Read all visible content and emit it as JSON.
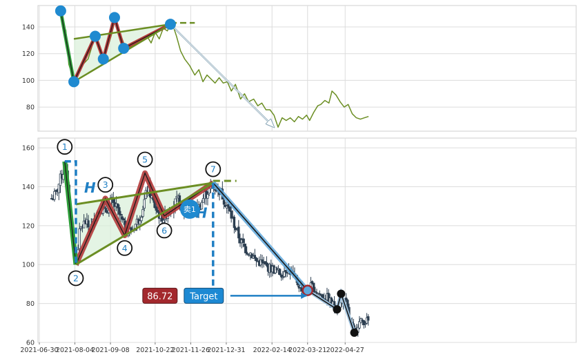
{
  "chart_data": [
    {
      "type": "line",
      "panel": "overview",
      "ylim": [
        62,
        156
      ],
      "yticks": [
        80,
        100,
        120,
        140
      ],
      "grid": true,
      "series": [
        {
          "color": "#6b8e23",
          "points": [
            [
              "2021-07-26",
              138
            ],
            [
              "2021-07-29",
              112
            ],
            [
              "2021-08-03",
              100
            ],
            [
              "2021-08-07",
              106
            ],
            [
              "2021-08-12",
              112
            ],
            [
              "2021-08-17",
              116
            ],
            [
              "2021-08-21",
              126
            ],
            [
              "2021-08-25",
              133
            ],
            [
              "2021-08-29",
              124
            ],
            [
              "2021-09-01",
              116
            ],
            [
              "2021-09-05",
              124
            ],
            [
              "2021-09-09",
              134
            ],
            [
              "2021-09-13",
              146
            ],
            [
              "2021-09-17",
              136
            ],
            [
              "2021-09-21",
              128
            ],
            [
              "2021-09-25",
              124
            ],
            [
              "2021-09-30",
              126
            ],
            [
              "2021-10-05",
              129
            ],
            [
              "2021-10-09",
              131
            ],
            [
              "2021-10-14",
              133
            ],
            [
              "2021-10-18",
              128
            ],
            [
              "2021-10-22",
              136
            ],
            [
              "2021-10-26",
              131
            ],
            [
              "2021-10-30",
              139
            ],
            [
              "2021-11-03",
              137
            ],
            [
              "2021-11-06",
              142
            ],
            [
              "2021-11-09",
              140
            ],
            [
              "2021-11-12",
              133
            ],
            [
              "2021-11-16",
              122
            ],
            [
              "2021-11-20",
              116
            ],
            [
              "2021-11-25",
              111
            ],
            [
              "2021-11-30",
              104
            ],
            [
              "2021-12-04",
              108
            ],
            [
              "2021-12-08",
              99
            ],
            [
              "2021-12-12",
              104
            ],
            [
              "2021-12-16",
              101
            ],
            [
              "2021-12-20",
              98
            ],
            [
              "2021-12-24",
              102
            ],
            [
              "2021-12-28",
              98
            ],
            [
              "2022-01-01",
              99
            ],
            [
              "2022-01-05",
              92
            ],
            [
              "2022-01-09",
              97
            ],
            [
              "2022-01-14",
              86
            ],
            [
              "2022-01-18",
              90
            ],
            [
              "2022-01-22",
              84
            ],
            [
              "2022-01-27",
              86
            ],
            [
              "2022-01-31",
              81
            ],
            [
              "2022-02-04",
              83
            ],
            [
              "2022-02-08",
              78
            ],
            [
              "2022-02-12",
              78
            ],
            [
              "2022-02-16",
              74
            ],
            [
              "2022-02-20",
              65
            ],
            [
              "2022-02-24",
              72
            ],
            [
              "2022-02-28",
              70
            ],
            [
              "2022-03-04",
              72
            ],
            [
              "2022-03-08",
              69
            ],
            [
              "2022-03-12",
              73
            ],
            [
              "2022-03-16",
              71
            ],
            [
              "2022-03-20",
              74
            ],
            [
              "2022-03-23",
              70
            ],
            [
              "2022-03-27",
              76
            ],
            [
              "2022-03-31",
              81
            ],
            [
              "2022-04-03",
              82
            ],
            [
              "2022-04-07",
              85
            ],
            [
              "2022-04-11",
              83
            ],
            [
              "2022-04-14",
              92
            ],
            [
              "2022-04-18",
              89
            ],
            [
              "2022-04-22",
              84
            ],
            [
              "2022-04-26",
              80
            ],
            [
              "2022-04-30",
              82
            ],
            [
              "2022-05-04",
              75
            ],
            [
              "2022-05-08",
              72
            ],
            [
              "2022-05-12",
              71
            ],
            [
              "2022-05-16",
              72
            ],
            [
              "2022-05-20",
              73
            ]
          ]
        }
      ],
      "pattern": {
        "leg_start": [
          "2021-07-21",
          152
        ],
        "leg_end": [
          "2021-08-03",
          99
        ],
        "zigzag": [
          [
            "2021-08-03",
            99
          ],
          [
            "2021-08-24",
            133
          ],
          [
            "2021-09-01",
            116
          ],
          [
            "2021-09-12",
            147
          ],
          [
            "2021-09-21",
            124
          ],
          [
            "2021-11-06",
            142
          ]
        ],
        "upper_line": [
          [
            "2021-08-03",
            131
          ],
          [
            "2021-11-06",
            142
          ]
        ],
        "lower_line": [
          [
            "2021-08-03",
            99
          ],
          [
            "2021-11-06",
            142
          ]
        ],
        "extension": [
          [
            "2021-11-06",
            143
          ],
          [
            "2021-11-30",
            143
          ]
        ],
        "target_arrow": [
          [
            "2021-11-06",
            142
          ],
          [
            "2022-02-16",
            65
          ]
        ]
      }
    },
    {
      "type": "candlestick",
      "panel": "detail",
      "ylim": [
        60,
        165
      ],
      "yticks": [
        60,
        80,
        100,
        120,
        140,
        160
      ],
      "xlim": [
        "2021-06-30",
        "2022-05-31"
      ],
      "xticks": [
        "2021-06-30",
        "2021-08-04",
        "2021-09-08",
        "2021-10-22",
        "2021-11-26",
        "2021-12-31",
        "2022-02-14",
        "2022-03-21",
        "2022-04-27"
      ],
      "grid": true,
      "price_path": [
        [
          "2021-07-12",
          134
        ],
        [
          "2021-07-16",
          136
        ],
        [
          "2021-07-22",
          146
        ],
        [
          "2021-07-26",
          150
        ],
        [
          "2021-07-30",
          126
        ],
        [
          "2021-08-03",
          108
        ],
        [
          "2021-08-05",
          100
        ],
        [
          "2021-08-09",
          118
        ],
        [
          "2021-08-14",
          122
        ],
        [
          "2021-08-19",
          118
        ],
        [
          "2021-08-24",
          125
        ],
        [
          "2021-08-29",
          129
        ],
        [
          "2021-09-03",
          127
        ],
        [
          "2021-09-08",
          132
        ],
        [
          "2021-09-13",
          130
        ],
        [
          "2021-09-18",
          124
        ],
        [
          "2021-09-23",
          118
        ],
        [
          "2021-09-28",
          117
        ],
        [
          "2021-10-03",
          121
        ],
        [
          "2021-10-08",
          126
        ],
        [
          "2021-10-11",
          132
        ],
        [
          "2021-10-15",
          140
        ],
        [
          "2021-10-20",
          132
        ],
        [
          "2021-10-25",
          126
        ],
        [
          "2021-10-30",
          124
        ],
        [
          "2021-11-04",
          128
        ],
        [
          "2021-11-09",
          131
        ],
        [
          "2021-11-14",
          133
        ],
        [
          "2021-11-19",
          126
        ],
        [
          "2021-11-24",
          127
        ],
        [
          "2021-11-30",
          128
        ],
        [
          "2021-12-05",
          130
        ],
        [
          "2021-12-10",
          136
        ],
        [
          "2021-12-15",
          139
        ],
        [
          "2021-12-20",
          140
        ],
        [
          "2021-12-25",
          138
        ],
        [
          "2021-12-30",
          132
        ],
        [
          "2022-01-04",
          126
        ],
        [
          "2022-01-09",
          119
        ],
        [
          "2022-01-14",
          112
        ],
        [
          "2022-01-19",
          108
        ],
        [
          "2022-01-24",
          106
        ],
        [
          "2022-01-29",
          102
        ],
        [
          "2022-02-03",
          101
        ],
        [
          "2022-02-08",
          99
        ],
        [
          "2022-02-13",
          98
        ],
        [
          "2022-02-18",
          97
        ],
        [
          "2022-02-23",
          95
        ],
        [
          "2022-02-28",
          98
        ],
        [
          "2022-03-05",
          96
        ],
        [
          "2022-03-10",
          91
        ],
        [
          "2022-03-15",
          88
        ],
        [
          "2022-03-20",
          87
        ],
        [
          "2022-03-25",
          89
        ],
        [
          "2022-03-30",
          86
        ],
        [
          "2022-04-04",
          84
        ],
        [
          "2022-04-09",
          83
        ],
        [
          "2022-04-14",
          80
        ],
        [
          "2022-04-19",
          77
        ],
        [
          "2022-04-24",
          82
        ],
        [
          "2022-04-28",
          80
        ],
        [
          "2022-05-02",
          70
        ],
        [
          "2022-05-06",
          65
        ],
        [
          "2022-05-10",
          70
        ],
        [
          "2022-05-15",
          71
        ],
        [
          "2022-05-20",
          71
        ]
      ],
      "pattern": {
        "leg_start": [
          "2021-07-25",
          153
        ],
        "leg_end": [
          "2021-08-05",
          100
        ],
        "zigzag": [
          [
            "2021-08-05",
            100
          ],
          [
            "2021-09-03",
            134
          ],
          [
            "2021-09-22",
            115
          ],
          [
            "2021-10-12",
            147
          ],
          [
            "2021-10-31",
            125
          ],
          [
            "2021-12-18",
            142
          ]
        ],
        "upper_line": [
          [
            "2021-08-05",
            131
          ],
          [
            "2021-12-18",
            142
          ]
        ],
        "lower_line": [
          [
            "2021-08-05",
            100
          ],
          [
            "2021-12-18",
            142
          ]
        ],
        "extension": [
          [
            "2021-12-18",
            143
          ],
          [
            "2022-01-10",
            143
          ]
        ],
        "h_bracket_left": [
          [
            "2021-07-25",
            153
          ],
          [
            "2021-08-05",
            153
          ],
          [
            "2021-08-05",
            100
          ]
        ],
        "h_bracket_right": [
          [
            "2021-12-18",
            142
          ],
          [
            "2021-12-18",
            84
          ]
        ],
        "target_line": [
          [
            "2021-12-18",
            142
          ],
          [
            "2022-03-21",
            86.72
          ]
        ],
        "target_arrow_y": 84,
        "target_arrow_x": [
          "2022-01-04",
          "2022-03-20"
        ],
        "sell_point": [
          "2021-11-25",
          128.5
        ],
        "post_path": [
          [
            "2022-03-21",
            86.72
          ],
          [
            "2022-04-19",
            77
          ],
          [
            "2022-04-23",
            85
          ],
          [
            "2022-05-06",
            65
          ]
        ],
        "black_dots": [
          [
            "2022-04-19",
            77
          ],
          [
            "2022-04-23",
            85
          ],
          [
            "2022-05-06",
            65
          ]
        ],
        "wave_labels": [
          {
            "label": "1",
            "x": "2021-07-25",
            "y": 160.5
          },
          {
            "label": "2",
            "x": "2021-08-05",
            "y": 93
          },
          {
            "label": "3",
            "x": "2021-09-03",
            "y": 141
          },
          {
            "label": "4",
            "x": "2021-09-22",
            "y": 108.5
          },
          {
            "label": "5",
            "x": "2021-10-12",
            "y": 154
          },
          {
            "label": "6",
            "x": "2021-10-31",
            "y": 117.5
          },
          {
            "label": "7",
            "x": "2021-12-18",
            "y": 149
          }
        ]
      }
    }
  ],
  "annotations": {
    "h_label": "H",
    "sell_label": "卖1",
    "target_value": "86.72",
    "target_label": "Target"
  },
  "colors": {
    "line_green": "#6b8e23",
    "leg_green": "#2e9e3a",
    "zigzag_red": "#b33a3a",
    "dot_blue": "#1f8ad0",
    "dashed_blue": "#1f7fc4",
    "target_red": "#a3282d",
    "target_blue": "#1d89d3",
    "candle_dark": "#2c3e50",
    "fill_green": "#d8efd8"
  }
}
